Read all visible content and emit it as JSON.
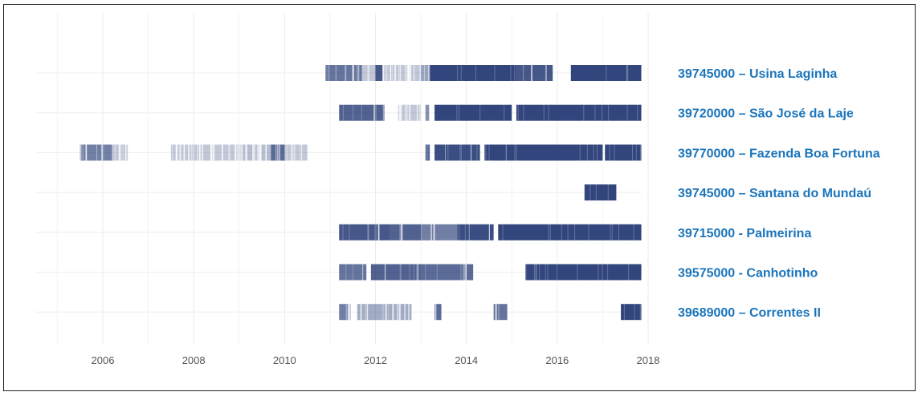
{
  "chart_data": {
    "type": "heatmap",
    "title": "",
    "xlabel": "",
    "ylabel": "",
    "xlim": [
      2004.6,
      2018.2
    ],
    "x_ticks": [
      2006,
      2008,
      2010,
      2012,
      2014,
      2016,
      2018
    ],
    "grid": true,
    "colors": {
      "bar": "#0e2566",
      "grid": "#ebebeb",
      "label": "#1b75bb",
      "frame": "#222222"
    },
    "series": [
      {
        "name": "39745000 – Usina Laginha",
        "segments": [
          [
            2010.9,
            2011.0,
            0.7
          ],
          [
            2011.0,
            2011.7,
            0.75
          ],
          [
            2011.7,
            2012.0,
            0.3
          ],
          [
            2012.0,
            2012.15,
            0.9
          ],
          [
            2012.15,
            2013.0,
            0.3
          ],
          [
            2013.0,
            2013.2,
            0.5
          ],
          [
            2013.2,
            2015.1,
            1.0
          ],
          [
            2015.1,
            2015.9,
            0.9
          ],
          [
            2016.3,
            2017.85,
            1.0
          ]
        ]
      },
      {
        "name": "39720000 – São José da Laje",
        "segments": [
          [
            2011.2,
            2012.2,
            0.85
          ],
          [
            2012.5,
            2013.0,
            0.3
          ],
          [
            2013.1,
            2013.18,
            0.6
          ],
          [
            2013.3,
            2015.0,
            1.0
          ],
          [
            2015.1,
            2017.85,
            1.0
          ]
        ]
      },
      {
        "name": "39770000 – Fazenda Boa Fortuna",
        "segments": [
          [
            2005.5,
            2006.2,
            0.7
          ],
          [
            2006.2,
            2006.55,
            0.3
          ],
          [
            2007.5,
            2009.0,
            0.3
          ],
          [
            2009.0,
            2009.7,
            0.35
          ],
          [
            2009.7,
            2010.0,
            0.8
          ],
          [
            2010.0,
            2010.5,
            0.3
          ],
          [
            2013.1,
            2013.2,
            0.8
          ],
          [
            2013.3,
            2014.3,
            0.95
          ],
          [
            2014.4,
            2017.0,
            1.0
          ],
          [
            2017.05,
            2017.85,
            1.0
          ]
        ]
      },
      {
        "name": "39745000 – Santana do Mundaú",
        "segments": [
          [
            2016.6,
            2017.3,
            1.0
          ]
        ]
      },
      {
        "name": "39715000 - Palmeirina",
        "segments": [
          [
            2011.2,
            2012.3,
            0.9
          ],
          [
            2012.3,
            2013.0,
            0.85
          ],
          [
            2013.0,
            2013.8,
            0.7
          ],
          [
            2013.8,
            2014.6,
            0.95
          ],
          [
            2014.7,
            2017.85,
            1.0
          ]
        ]
      },
      {
        "name": "39575000 - Canhotinho",
        "segments": [
          [
            2011.2,
            2011.8,
            0.75
          ],
          [
            2011.9,
            2013.0,
            0.85
          ],
          [
            2013.0,
            2014.15,
            0.8
          ],
          [
            2015.3,
            2017.85,
            1.0
          ]
        ]
      },
      {
        "name": "39689000 – Correntes II",
        "segments": [
          [
            2011.2,
            2011.45,
            0.7
          ],
          [
            2011.6,
            2012.8,
            0.45
          ],
          [
            2013.3,
            2013.45,
            0.8
          ],
          [
            2014.6,
            2014.9,
            0.75
          ],
          [
            2017.4,
            2017.85,
            1.0
          ]
        ]
      }
    ]
  }
}
